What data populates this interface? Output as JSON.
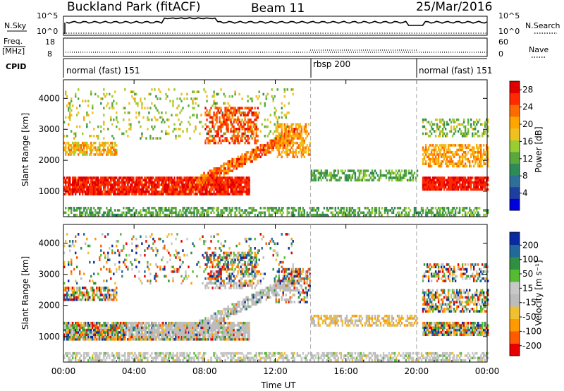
{
  "header": {
    "site": "Buckland Park (fitACF)",
    "beam": "Beam 11",
    "date": "25/Mar/2016"
  },
  "top_panels": {
    "nsky_label": "N.Sky",
    "nsearch_label": "N.Search",
    "nsky_ticks": [
      "10^5",
      "10^0"
    ],
    "freq_label_line1": "Freq.",
    "freq_label_line2": "[MHz]",
    "freq_ticks": [
      "18",
      "8"
    ],
    "nave_label": "Nave",
    "nave_ticks": [
      "60",
      "0"
    ],
    "cpid_label": "CPID",
    "cpid_segments": [
      {
        "label": "normal (fast) 151",
        "start_hour": 0,
        "end_hour": 14
      },
      {
        "label": "rbsp 200",
        "start_hour": 14,
        "end_hour": 20
      },
      {
        "label": "normal (fast) 151",
        "start_hour": 20,
        "end_hour": 24
      }
    ]
  },
  "colors": {
    "power_scale": [
      "#0000dd",
      "#1e3fa0",
      "#2e6f9a",
      "#2e8b57",
      "#5aa83c",
      "#9acd32",
      "#f0c020",
      "#ffa500",
      "#ff6a00",
      "#ff2a00",
      "#e00000"
    ],
    "velocity_scale": [
      "#e60000",
      "#ff5a00",
      "#ff9a00",
      "#f0c030",
      "#bcbcbc",
      "#c8c8c8",
      "#55bb33",
      "#2e9040",
      "#1f6a9a",
      "#0a2aa0"
    ]
  },
  "chart_data": [
    {
      "type": "heatmap",
      "name_shown": "Power",
      "xlabel": "",
      "ylabel": "Slant Range [km]",
      "x_ticks": [
        "",
        "",
        "",
        "",
        "",
        "",
        ""
      ],
      "y_ticks": [
        "1000",
        "2000",
        "3000",
        "4000"
      ],
      "xlim_hours": [
        0,
        24
      ],
      "ylim_km": [
        180,
        4600
      ],
      "colorbar_label": "Power [dB]",
      "colorbar_ticks": [
        "4",
        "8",
        "12",
        "16",
        "20",
        "24",
        "28"
      ],
      "colorbar_range": [
        0,
        30
      ]
    },
    {
      "type": "heatmap",
      "name_shown": "Velocity",
      "xlabel": "Time UT",
      "ylabel": "Slant Range [km]",
      "x_ticks": [
        "00:00",
        "04:00",
        "08:00",
        "12:00",
        "16:00",
        "20:00",
        "00:00"
      ],
      "y_ticks": [
        "1000",
        "2000",
        "3000",
        "4000"
      ],
      "xlim_hours": [
        0,
        24
      ],
      "ylim_km": [
        180,
        4600
      ],
      "colorbar_label": "Velocity [m s⁻¹]",
      "colorbar_ticks": [
        "200",
        "100",
        "50",
        "15",
        "-15",
        "-50",
        "-100",
        "-200"
      ],
      "colorbar_range": [
        -250,
        250
      ]
    }
  ]
}
